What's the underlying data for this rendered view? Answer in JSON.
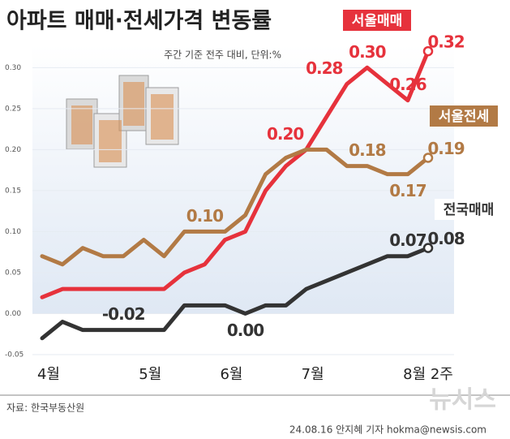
{
  "chart_data": {
    "type": "line",
    "title": "아파트 매매·전세가격 변동률",
    "subtitle": "주간 기준 전주 대비, 단위:%",
    "source": "자료: 한국부동산원",
    "credit": "24.08.16 안지혜 기자 hokma@newsis.com",
    "watermark": "뉴시스",
    "categories": [
      "4월",
      null,
      null,
      null,
      null,
      "5월",
      null,
      null,
      null,
      "6월",
      null,
      null,
      null,
      "7월",
      null,
      null,
      null,
      null,
      null,
      "8월 2주"
    ],
    "ylim": [
      -0.05,
      0.33
    ],
    "yticks": [
      {
        "value": -0.05,
        "label": "-0.05"
      },
      {
        "value": 0,
        "label": "0.00"
      },
      {
        "value": 0.05,
        "label": "0.05"
      },
      {
        "value": 0.1,
        "label": "0.10"
      },
      {
        "value": 0.15,
        "label": "0.15"
      },
      {
        "value": 0.2,
        "label": "0.20"
      },
      {
        "value": 0.25,
        "label": "0.25"
      },
      {
        "value": 0.3,
        "label": "0.30"
      }
    ],
    "grid": true,
    "series": [
      {
        "name": "서울매매",
        "color": "#e6323c",
        "values": [
          0.02,
          0.03,
          0.03,
          0.03,
          0.03,
          0.03,
          0.03,
          0.05,
          0.06,
          0.09,
          0.1,
          0.15,
          0.18,
          0.2,
          0.24,
          0.28,
          0.3,
          0.28,
          0.26,
          0.32
        ],
        "value_labels": [
          null,
          null,
          null,
          null,
          null,
          null,
          null,
          null,
          null,
          null,
          null,
          null,
          null,
          "0.20",
          null,
          "0.28",
          "0.30",
          null,
          "0.26",
          "0.32"
        ]
      },
      {
        "name": "서울전세",
        "color": "#b27a45",
        "values": [
          0.07,
          0.06,
          0.08,
          0.07,
          0.07,
          0.09,
          0.07,
          0.1,
          0.1,
          0.1,
          0.12,
          0.17,
          0.19,
          0.2,
          0.2,
          0.18,
          0.18,
          0.17,
          0.17,
          0.19
        ],
        "value_labels": [
          null,
          null,
          null,
          null,
          null,
          null,
          null,
          null,
          "0.10",
          null,
          null,
          null,
          null,
          null,
          null,
          null,
          "0.18",
          null,
          "0.17",
          "0.19"
        ]
      },
      {
        "name": "전국매매",
        "color": "#333333",
        "values": [
          -0.03,
          -0.01,
          -0.02,
          -0.02,
          -0.02,
          -0.02,
          -0.02,
          0.01,
          0.01,
          0.01,
          0.0,
          0.01,
          0.01,
          0.03,
          0.04,
          0.05,
          0.06,
          0.07,
          0.07,
          0.08
        ],
        "value_labels": [
          null,
          null,
          null,
          null,
          "-0.02",
          null,
          null,
          null,
          null,
          null,
          "0.00",
          null,
          null,
          null,
          null,
          null,
          null,
          null,
          "0.07",
          "0.08"
        ]
      }
    ]
  }
}
